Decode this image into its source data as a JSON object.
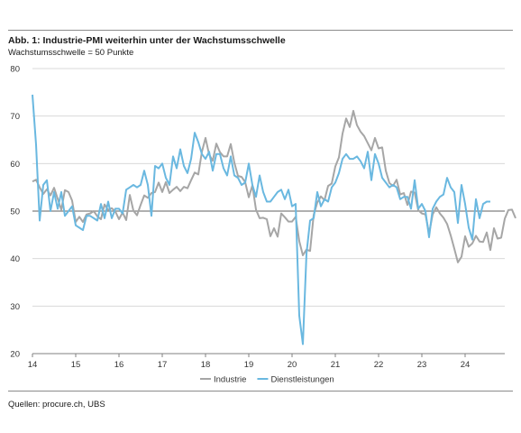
{
  "header": {
    "title": "Abb. 1: Industrie-PMI weiterhin unter der Wachstumsschwelle",
    "subtitle": "Wachstumsschwelle = 50 Punkte"
  },
  "footer": {
    "source": "Quellen: procure.ch, UBS"
  },
  "colors": {
    "industrie": "#a6a6a6",
    "dienstleistungen": "#6ab8e0",
    "grid": "#d9d9d9",
    "threshold": "#808080"
  },
  "chart_data": {
    "type": "line",
    "title": "",
    "xlabel": "",
    "ylabel": "",
    "ylim": [
      20,
      80
    ],
    "yticks": [
      20,
      30,
      40,
      50,
      60,
      70,
      80
    ],
    "xlim": [
      2014.0,
      2024.917
    ],
    "xticks": [
      {
        "x": 2014,
        "label": "14"
      },
      {
        "x": 2015,
        "label": "15"
      },
      {
        "x": 2016,
        "label": "16"
      },
      {
        "x": 2017,
        "label": "17"
      },
      {
        "x": 2018,
        "label": "18"
      },
      {
        "x": 2019,
        "label": "19"
      },
      {
        "x": 2020,
        "label": "20"
      },
      {
        "x": 2021,
        "label": "21"
      },
      {
        "x": 2022,
        "label": "22"
      },
      {
        "x": 2023,
        "label": "23"
      },
      {
        "x": 2024,
        "label": "24"
      }
    ],
    "threshold": 50,
    "grid": true,
    "legend": "bottom-center",
    "x_start": 2014.0,
    "x_step": 0.08333,
    "series": [
      {
        "name": "Industrie",
        "values": [
          56.2,
          56.6,
          55.0,
          53.6,
          54.6,
          53.3,
          54.9,
          52.6,
          50.3,
          54.4,
          54.0,
          52.2,
          47.7,
          48.8,
          47.7,
          49.3,
          49.5,
          50.0,
          48.9,
          48.3,
          51.4,
          50.2,
          50.6,
          49.9,
          48.3,
          49.7,
          48.1,
          53.4,
          50.1,
          49.1,
          51.3,
          53.3,
          52.8,
          53.8,
          54.0,
          56.0,
          54.0,
          56.1,
          53.8,
          54.5,
          55.1,
          54.2,
          55.1,
          54.8,
          56.5,
          58.1,
          57.7,
          62.5,
          65.4,
          61.9,
          60.6,
          64.2,
          62.4,
          61.5,
          61.5,
          64.1,
          60.2,
          57.4,
          57.2,
          56.1,
          52.9,
          55.4,
          50.3,
          48.5,
          48.6,
          48.3,
          44.7,
          46.4,
          44.6,
          49.5,
          48.7,
          47.8,
          47.8,
          48.8,
          43.7,
          40.7,
          41.9,
          41.6,
          49.2,
          51.8,
          53.1,
          52.3,
          55.3,
          55.8,
          59.4,
          61.3,
          66.3,
          69.5,
          67.7,
          71.1,
          68.1,
          66.7,
          65.8,
          64.3,
          62.8,
          65.4,
          63.2,
          63.4,
          58.5,
          55.9,
          55.3,
          56.6,
          53.5,
          53.8,
          51.3,
          54.1,
          53.9,
          50.2,
          49.5,
          49.3,
          45.3,
          49.3,
          50.8,
          49.5,
          48.6,
          47.3,
          44.9,
          42.1,
          39.2,
          40.4,
          44.7,
          42.5,
          43.2,
          44.8,
          43.6,
          43.5,
          45.5,
          41.8,
          46.4,
          44.2,
          44.4,
          48.4,
          50.2,
          50.3,
          48.5
        ]
      },
      {
        "name": "Dienstleistungen",
        "values": [
          74.5,
          64.0,
          48.0,
          55.5,
          56.5,
          50.0,
          54.0,
          50.5,
          54.0,
          49.0,
          50.0,
          51.0,
          47.0,
          46.5,
          46.0,
          49.0,
          49.0,
          48.5,
          48.0,
          51.5,
          48.5,
          52.0,
          48.5,
          50.5,
          50.5,
          49.5,
          54.5,
          55.0,
          55.5,
          55.0,
          55.5,
          58.5,
          55.5,
          49.0,
          59.5,
          59.0,
          60.0,
          57.0,
          55.5,
          61.5,
          59.0,
          63.0,
          59.5,
          58.0,
          61.0,
          66.5,
          64.5,
          62.0,
          61.0,
          62.5,
          58.5,
          62.0,
          62.0,
          59.0,
          57.5,
          61.5,
          57.5,
          57.0,
          55.5,
          56.0,
          60.0,
          55.5,
          53.0,
          57.5,
          54.0,
          52.0,
          52.0,
          53.0,
          54.0,
          54.5,
          52.5,
          54.5,
          51.0,
          51.5,
          28.0,
          22.0,
          41.0,
          48.0,
          48.5,
          54.0,
          51.0,
          52.5,
          52.0,
          55.0,
          56.0,
          58.0,
          61.0,
          62.0,
          61.0,
          61.0,
          61.5,
          60.5,
          59.0,
          62.5,
          56.5,
          62.0,
          60.0,
          57.0,
          56.0,
          55.0,
          55.5,
          55.0,
          52.5,
          53.0,
          53.0,
          50.5,
          56.5,
          50.5,
          51.5,
          50.0,
          44.5,
          50.5,
          52.0,
          53.0,
          53.5,
          57.0,
          55.0,
          54.0,
          47.5,
          55.5,
          51.5,
          46.5,
          44.0,
          52.5,
          48.5,
          51.5,
          52.0,
          52.0
        ]
      }
    ]
  }
}
